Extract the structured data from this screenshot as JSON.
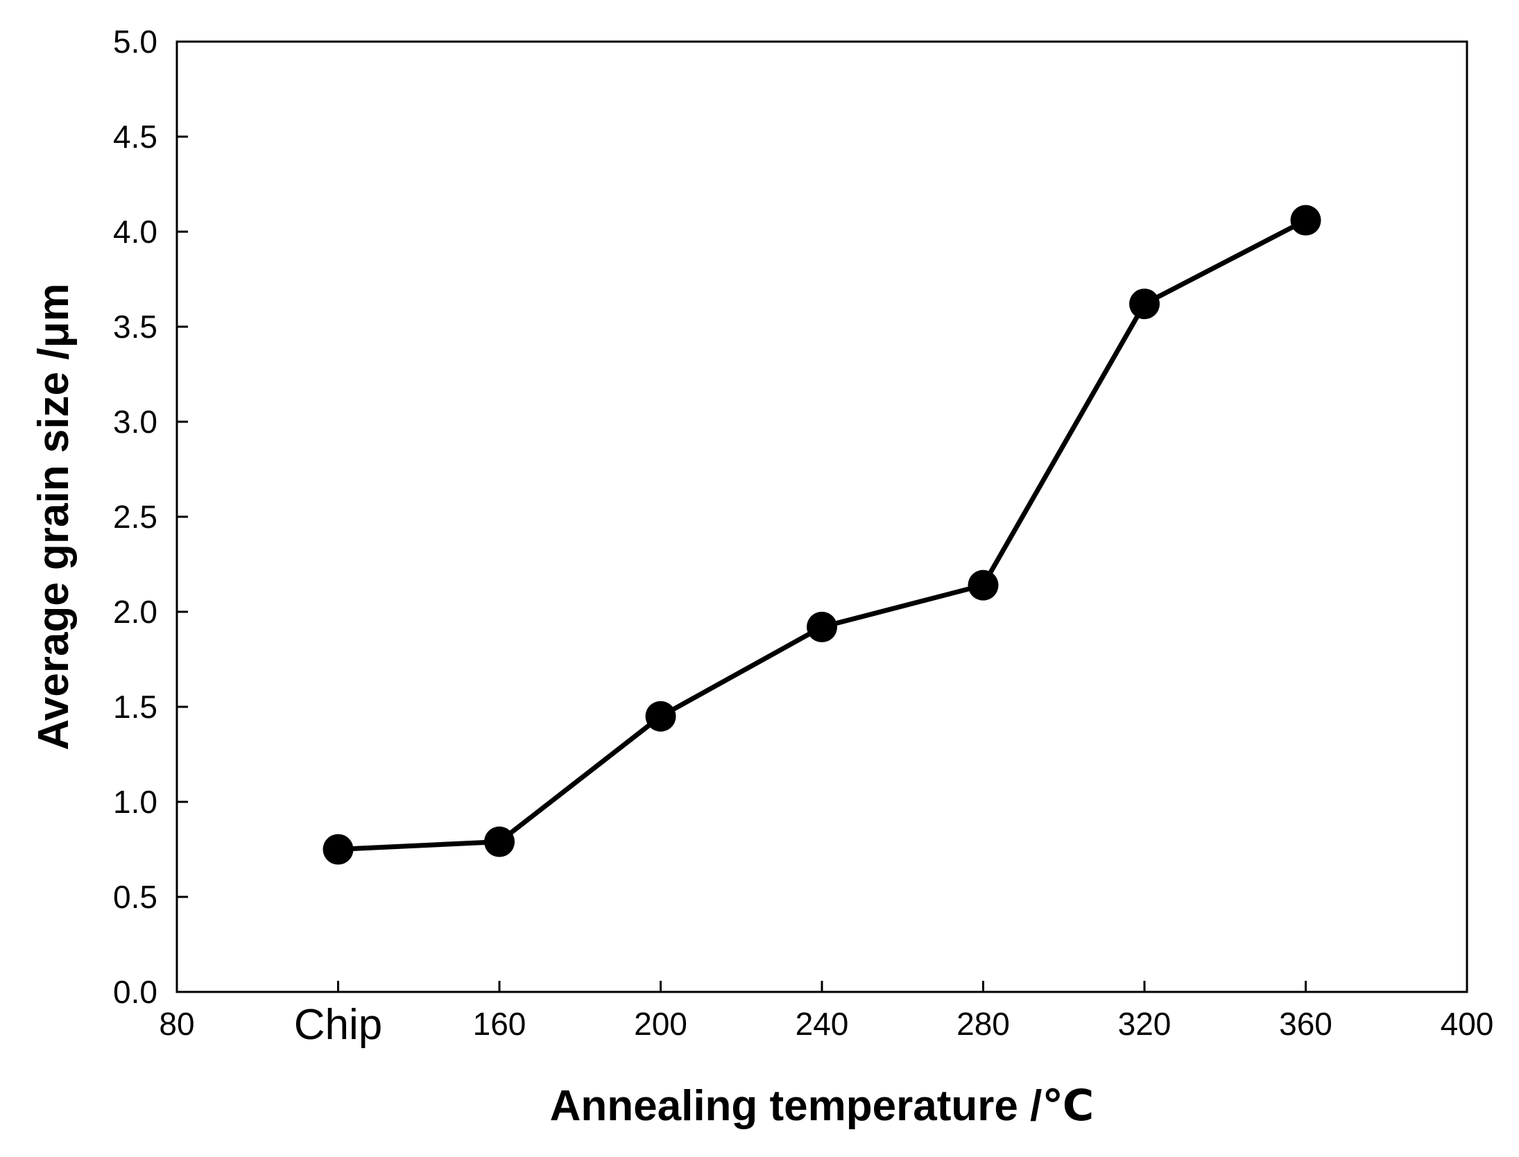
{
  "chart_data": {
    "type": "line",
    "title": "",
    "xlabel": "Annealing temperature /℃",
    "ylabel": "Average grain size /μm",
    "xlim": [
      80,
      400
    ],
    "ylim": [
      0.0,
      5.0
    ],
    "x_ticks": [
      80,
      120,
      160,
      200,
      240,
      280,
      320,
      360,
      400
    ],
    "x_tick_labels": [
      "80",
      "Chip",
      "160",
      "200",
      "240",
      "280",
      "320",
      "360",
      "400"
    ],
    "y_ticks": [
      0.0,
      0.5,
      1.0,
      1.5,
      2.0,
      2.5,
      3.0,
      3.5,
      4.0,
      4.5,
      5.0
    ],
    "y_tick_labels": [
      "0.0",
      "0.5",
      "1.0",
      "1.5",
      "2.0",
      "2.5",
      "3.0",
      "3.5",
      "4.0",
      "4.5",
      "5.0"
    ],
    "grid": false,
    "series": [
      {
        "name": "Average grain size",
        "x": [
          120,
          160,
          200,
          240,
          280,
          320,
          360
        ],
        "labels": [
          "Chip",
          "160",
          "200",
          "240",
          "280",
          "320",
          "360"
        ],
        "values": [
          0.75,
          0.79,
          1.45,
          1.92,
          2.14,
          3.62,
          4.06
        ],
        "marker": "filled-circle",
        "color": "#000000"
      }
    ]
  }
}
